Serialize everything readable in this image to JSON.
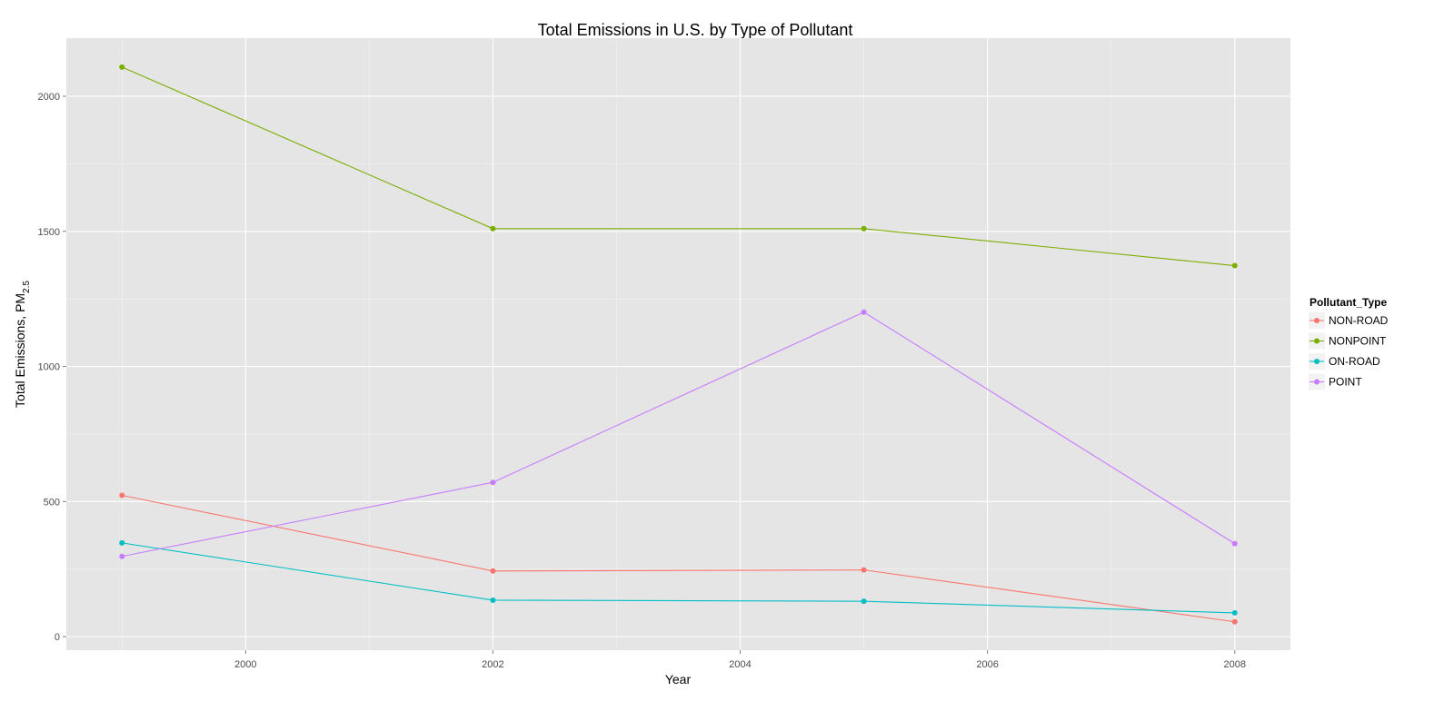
{
  "chart_data": {
    "type": "line",
    "title": "Total Emissions in U.S. by Type of Pollutant",
    "xlabel": "Year",
    "ylabel_main": "Total Emissions, PM",
    "ylabel_sub": "2.5",
    "x": [
      1999,
      2002,
      2005,
      2008
    ],
    "xlim": [
      1998.55,
      2008.45
    ],
    "ylim": [
      -50,
      2215
    ],
    "x_ticks": [
      2000,
      2002,
      2004,
      2006,
      2008
    ],
    "y_ticks": [
      0,
      500,
      1000,
      1500,
      2000
    ],
    "grid": true,
    "legend_position": "right",
    "legend_title": "Pollutant_Type",
    "series": [
      {
        "name": "NON-ROAD",
        "color": "#f8766d",
        "values": [
          523,
          243,
          247,
          55
        ]
      },
      {
        "name": "NONPOINT",
        "color": "#7cae00",
        "values": [
          2108,
          1510,
          1510,
          1373
        ]
      },
      {
        "name": "ON-ROAD",
        "color": "#00bfc4",
        "values": [
          347,
          135,
          131,
          88
        ]
      },
      {
        "name": "POINT",
        "color": "#c77cff",
        "values": [
          297,
          571,
          1201,
          344
        ]
      }
    ]
  }
}
